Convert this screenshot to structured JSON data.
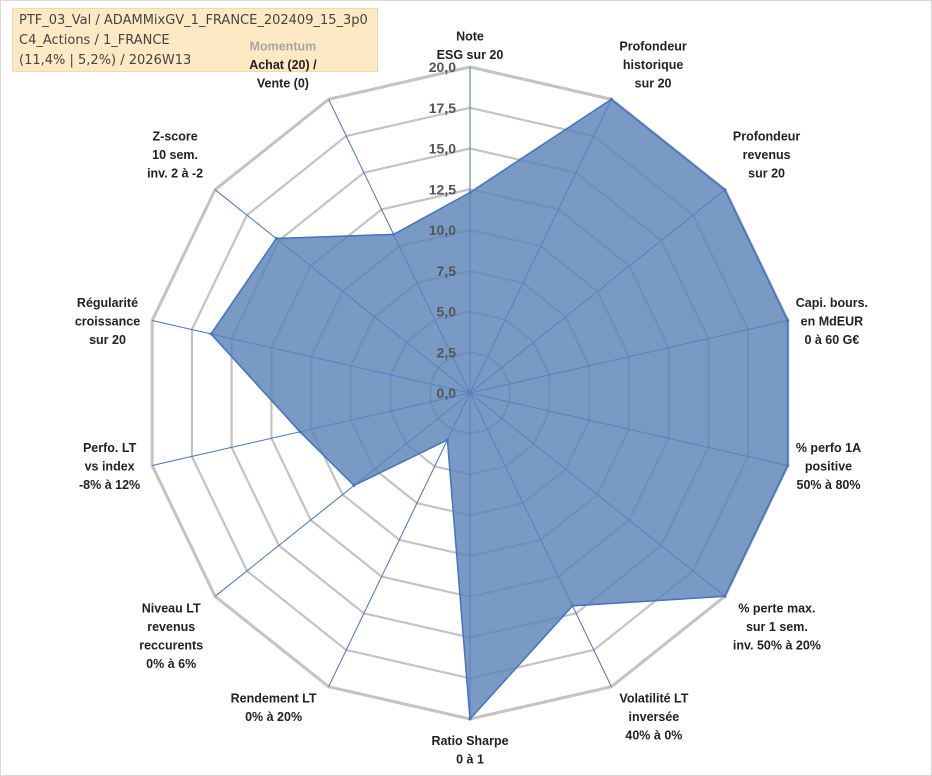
{
  "info": {
    "line1": "PTF_03_Val / ADAMMixGV_1_FRANCE_202409_15_3p0",
    "line2": "C4_Actions / 1_FRANCE",
    "line3": "(11,4% | 5,2%) / 2026W13"
  },
  "chart_data": {
    "type": "radar",
    "rmax": 20,
    "tick_values": [
      0,
      2.5,
      5,
      7.5,
      10,
      12.5,
      15,
      17.5,
      20
    ],
    "tick_labels": [
      "0,0",
      "2,5",
      "5,0",
      "7,5",
      "10,0",
      "12,5",
      "15,0",
      "17,5",
      "20,0"
    ],
    "axes": [
      {
        "label": [
          "Note",
          "ESG sur 20"
        ],
        "value": 12.3
      },
      {
        "label": [
          "Profondeur",
          "historique",
          "sur 20"
        ],
        "value": 20
      },
      {
        "label": [
          "Profondeur",
          "revenus",
          "sur 20"
        ],
        "value": 20
      },
      {
        "label": [
          "Capi. bours.",
          "en MdEUR",
          "0 à 60 G€"
        ],
        "value": 20
      },
      {
        "label": [
          "% perfo 1A",
          "positive",
          "50% à 80%"
        ],
        "value": 20
      },
      {
        "label": [
          "% perte max.",
          "sur 1 sem.",
          "inv. 50% à 20%"
        ],
        "value": 20
      },
      {
        "label": [
          "Volatilité LT",
          "inversée",
          "40% à 0%"
        ],
        "value": 14.5
      },
      {
        "label": [
          "Ratio Sharpe",
          "0 à 1"
        ],
        "value": 20
      },
      {
        "label": [
          "Rendement LT",
          "0% à 20%"
        ],
        "value": 3.2
      },
      {
        "label": [
          "Niveau LT",
          "revenus",
          "reccurents",
          "0% à 6%"
        ],
        "value": 9.1
      },
      {
        "label": [
          "Perfo. LT",
          "vs index",
          "-8% à 12%"
        ],
        "value": 10.7
      },
      {
        "label": [
          "Régularité",
          "croissance",
          "sur 20"
        ],
        "value": 16.3
      },
      {
        "label": [
          "Z-score",
          "10 sem.",
          "inv. 2 à -2"
        ],
        "value": 15.2
      },
      {
        "label": [
          "Momentum",
          "Achat (20) /",
          "Vente (0)"
        ],
        "value": 10.8
      }
    ],
    "colors": {
      "fill": "#5b84b8",
      "stroke": "#4472c4",
      "grid": "#c3c3c3",
      "spoke": "#4472c4",
      "momentum_label": "#a6a6a6"
    }
  }
}
